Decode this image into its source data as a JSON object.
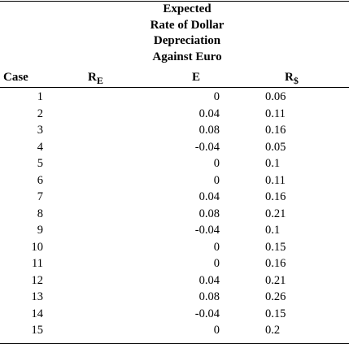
{
  "header": {
    "expected_lines": [
      "Expected",
      "Rate of Dollar",
      "Depreciation",
      "Against Euro"
    ],
    "case": "Case",
    "re_main": "R",
    "re_sub": "E",
    "e": "E",
    "rs_main": "R",
    "rs_sub": "$"
  },
  "rows": [
    {
      "case": "1",
      "e": "0",
      "rs": "0.06"
    },
    {
      "case": "2",
      "e": "0.04",
      "rs": "0.11"
    },
    {
      "case": "3",
      "e": "0.08",
      "rs": "0.16"
    },
    {
      "case": "4",
      "e": "-0.04",
      "rs": "0.05"
    },
    {
      "case": "5",
      "e": "0",
      "rs": "0.1"
    },
    {
      "case": "6",
      "e": "0",
      "rs": "0.11"
    },
    {
      "case": "7",
      "e": "0.04",
      "rs": "0.16"
    },
    {
      "case": "8",
      "e": "0.08",
      "rs": "0.21"
    },
    {
      "case": "9",
      "e": "-0.04",
      "rs": "0.1"
    },
    {
      "case": "10",
      "e": "0",
      "rs": "0.15"
    },
    {
      "case": "11",
      "e": "0",
      "rs": "0.16"
    },
    {
      "case": "12",
      "e": "0.04",
      "rs": "0.21"
    },
    {
      "case": "13",
      "e": "0.08",
      "rs": "0.26"
    },
    {
      "case": "14",
      "e": "-0.04",
      "rs": "0.15"
    },
    {
      "case": "15",
      "e": "0",
      "rs": "0.2"
    }
  ]
}
